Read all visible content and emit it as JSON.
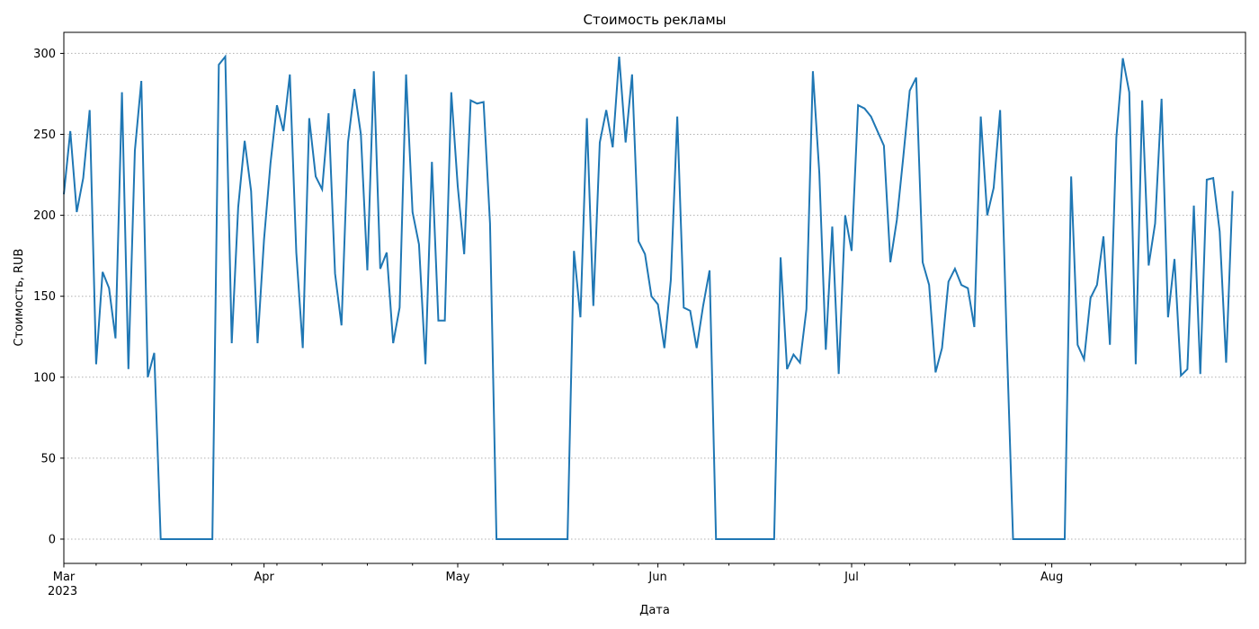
{
  "chart_data": {
    "type": "line",
    "title": "Стоимость рекламы",
    "xlabel": "Дата",
    "ylabel": "Стоимость, RUB",
    "x_start": "2023-03-01",
    "x_end": "2023-08-31",
    "ylim": [
      -15,
      313
    ],
    "yticks": [
      0,
      50,
      100,
      150,
      200,
      250,
      300
    ],
    "xticks": [
      {
        "date": "2023-03-01",
        "label": "Mar",
        "sublabel": "2023"
      },
      {
        "date": "2023-04-01",
        "label": "Apr",
        "sublabel": ""
      },
      {
        "date": "2023-05-01",
        "label": "May",
        "sublabel": ""
      },
      {
        "date": "2023-06-01",
        "label": "Jun",
        "sublabel": ""
      },
      {
        "date": "2023-07-01",
        "label": "Jul",
        "sublabel": ""
      },
      {
        "date": "2023-08-01",
        "label": "Aug",
        "sublabel": ""
      }
    ],
    "grid": "horizontal dotted",
    "line_color": "#1f77b4",
    "series": [
      {
        "start_date": "2023-03-01",
        "values": [
          213,
          252,
          202,
          223,
          265,
          108,
          165,
          155,
          124,
          276,
          105,
          240,
          283,
          100,
          115,
          0,
          0,
          0,
          0,
          0,
          0,
          0,
          0,
          0,
          293,
          298,
          121,
          205,
          246,
          215,
          121,
          185,
          232,
          268,
          252,
          287,
          177,
          118,
          260,
          224,
          216,
          263,
          164,
          132,
          245,
          278,
          250,
          166,
          289,
          167,
          177,
          121,
          143,
          287,
          202,
          182,
          108,
          233,
          135,
          135,
          276,
          218,
          176,
          271,
          269,
          270,
          195,
          0,
          0,
          0,
          0,
          0,
          0,
          0,
          0,
          0,
          0,
          0,
          0,
          178,
          137,
          260,
          144,
          245,
          265,
          242,
          298,
          245,
          287,
          184,
          176,
          150,
          145,
          118,
          160,
          261,
          143,
          141,
          118,
          144,
          166,
          0,
          0,
          0,
          0,
          0,
          0,
          0,
          0,
          0,
          0,
          174,
          105,
          114,
          109,
          142,
          289,
          226,
          117,
          193,
          102,
          200,
          178,
          268,
          266,
          261,
          252,
          243,
          171,
          197,
          236,
          277,
          285,
          171,
          157,
          103,
          118,
          159,
          167,
          157,
          155,
          131,
          261,
          200,
          217,
          265,
          125,
          0,
          0,
          0,
          0,
          0,
          0,
          0,
          0,
          0,
          224,
          120,
          111,
          149,
          157,
          187,
          120,
          248,
          297,
          276,
          108,
          271,
          169,
          195,
          272,
          137,
          173,
          101,
          105,
          206,
          102,
          222,
          223,
          190,
          109,
          215
        ]
      }
    ]
  }
}
